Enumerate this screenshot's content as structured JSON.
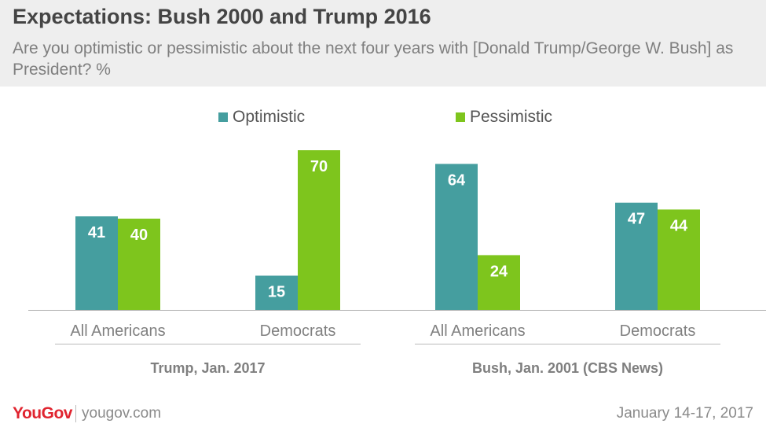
{
  "header": {
    "title": "Expectations: Bush 2000 and Trump 2016",
    "subtitle": "Are you optimistic or pessimistic about the next four years with [Donald Trump/George W. Bush] as President? %"
  },
  "legend": [
    {
      "label": "Optimistic",
      "color": "#459e9f"
    },
    {
      "label": "Pessimistic",
      "color": "#7ec51d"
    }
  ],
  "chart_data": {
    "type": "bar",
    "groups": [
      {
        "label": "Trump, Jan. 2017",
        "categories": [
          "All Americans",
          "Democrats"
        ]
      },
      {
        "label": "Bush, Jan. 2001 (CBS News)",
        "categories": [
          "All Americans",
          "Democrats"
        ]
      }
    ],
    "categories": [
      "All Americans",
      "Democrats",
      "All Americans",
      "Democrats"
    ],
    "series": [
      {
        "name": "Optimistic",
        "color": "#459e9f",
        "values": [
          41,
          15,
          64,
          47
        ]
      },
      {
        "name": "Pessimistic",
        "color": "#7ec51d",
        "values": [
          40,
          70,
          24,
          44
        ]
      }
    ],
    "ylim": [
      0,
      100
    ],
    "grid": false,
    "legend_position": "top"
  },
  "footer": {
    "brand": "YouGov",
    "url": "yougov.com",
    "date": "January 14-17, 2017"
  }
}
